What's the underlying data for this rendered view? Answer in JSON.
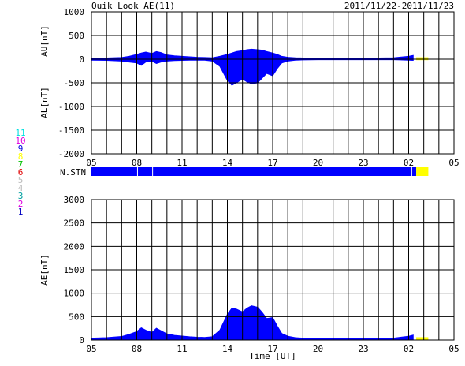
{
  "header": {
    "title": "Quik Look AE(11)",
    "date_range": "2011/11/22-2011/11/23"
  },
  "colors": {
    "fill": "#0000ff",
    "provisional": "#ffff00",
    "grid": "#000000",
    "stations": [
      "#0000cc",
      "#cc00cc",
      "#00aaaa",
      "#cccccc",
      "#cc0000",
      "#00cc00",
      "#ffcc00",
      "#0000ff",
      "#cc00cc",
      "#00cccc"
    ]
  },
  "station_legend": [
    "11",
    "10",
    "9",
    "8",
    "7",
    "6",
    "5",
    "4",
    "3",
    "2",
    "1"
  ],
  "station_colors": [
    "#00e0e0",
    "#e000e0",
    "#0000e0",
    "#ffff00",
    "#00c000",
    "#e00000",
    "#bbbbbb",
    "#bbbbbb",
    "#00a0a0",
    "#e000e0",
    "#0000c0"
  ],
  "chart_data": [
    {
      "type": "area",
      "name": "au-al",
      "ylabel_upper": "AU[nT]",
      "ylabel_lower": "AL[nT]",
      "ylim": [
        -2000,
        1000
      ],
      "yticks": [
        1000,
        500,
        0,
        -500,
        -1000,
        -1500,
        -2000
      ],
      "xlim": [
        5,
        29
      ],
      "xticks": [
        "05",
        "08",
        "11",
        "14",
        "17",
        "20",
        "23",
        "02",
        "05"
      ],
      "au": {
        "x": [
          5,
          6,
          7,
          7.5,
          8,
          8.3,
          8.6,
          9,
          9.3,
          9.6,
          10,
          10.5,
          11,
          11.5,
          12,
          12.5,
          13,
          13.5,
          14,
          14.3,
          14.6,
          15,
          15.3,
          15.6,
          16,
          16.3,
          16.6,
          17,
          17.3,
          17.6,
          18,
          18.5,
          19,
          20,
          21,
          22,
          23,
          24,
          25,
          26,
          26.3
        ],
        "values": [
          20,
          25,
          35,
          60,
          100,
          130,
          150,
          120,
          160,
          140,
          90,
          70,
          60,
          50,
          40,
          35,
          30,
          60,
          100,
          130,
          160,
          180,
          200,
          210,
          200,
          190,
          160,
          130,
          100,
          60,
          40,
          30,
          25,
          20,
          20,
          20,
          20,
          25,
          30,
          60,
          80
        ]
      },
      "al": {
        "x": [
          5,
          6,
          7,
          7.5,
          8,
          8.3,
          8.6,
          9,
          9.3,
          9.6,
          10,
          10.5,
          11,
          11.5,
          12,
          12.5,
          13,
          13.5,
          14,
          14.3,
          14.6,
          15,
          15.3,
          15.6,
          16,
          16.3,
          16.6,
          17,
          17.3,
          17.6,
          18,
          18.5,
          19,
          20,
          21,
          22,
          23,
          24,
          25,
          26,
          26.3
        ],
        "values": [
          -20,
          -25,
          -40,
          -60,
          -80,
          -130,
          -60,
          -40,
          -90,
          -60,
          -40,
          -30,
          -25,
          -20,
          -20,
          -20,
          -40,
          -150,
          -450,
          -550,
          -500,
          -420,
          -480,
          -520,
          -500,
          -400,
          -300,
          -350,
          -200,
          -80,
          -40,
          -20,
          -15,
          -10,
          -10,
          -10,
          -10,
          -10,
          -10,
          -20,
          -25
        ]
      },
      "provisional_x": [
        26.5,
        27.3
      ],
      "provisional_values": [
        40,
        -20
      ]
    },
    {
      "type": "area",
      "name": "station-count",
      "ylabel": "N.STN",
      "xlim": [
        5,
        29
      ],
      "provisional_x": [
        26.5,
        27.3
      ],
      "gaps": [
        8.05,
        9.05,
        26.2
      ]
    },
    {
      "type": "area",
      "name": "ae",
      "ylabel": "AE[nT]",
      "xlabel": "Time [UT]",
      "ylim": [
        0,
        3000
      ],
      "yticks": [
        3000,
        2500,
        2000,
        1500,
        1000,
        500,
        0
      ],
      "xlim": [
        5,
        29
      ],
      "xticks": [
        "05",
        "08",
        "11",
        "14",
        "17",
        "20",
        "23",
        "02",
        "05"
      ],
      "x": [
        5,
        6,
        7,
        7.5,
        8,
        8.3,
        8.6,
        9,
        9.3,
        9.6,
        10,
        10.5,
        11,
        11.5,
        12,
        12.5,
        13,
        13.5,
        14,
        14.3,
        14.6,
        15,
        15.3,
        15.6,
        16,
        16.3,
        16.6,
        17,
        17.3,
        17.6,
        18,
        18.5,
        19,
        20,
        21,
        22,
        23,
        24,
        25,
        26,
        26.3
      ],
      "values": [
        40,
        50,
        75,
        120,
        180,
        260,
        210,
        160,
        250,
        200,
        130,
        100,
        85,
        70,
        60,
        55,
        70,
        210,
        550,
        680,
        660,
        600,
        680,
        730,
        700,
        590,
        460,
        480,
        300,
        140,
        80,
        50,
        40,
        30,
        30,
        30,
        30,
        35,
        40,
        80,
        105
      ],
      "provisional_x": [
        26.5,
        27.3
      ],
      "provisional_values": [
        60,
        60
      ]
    }
  ]
}
